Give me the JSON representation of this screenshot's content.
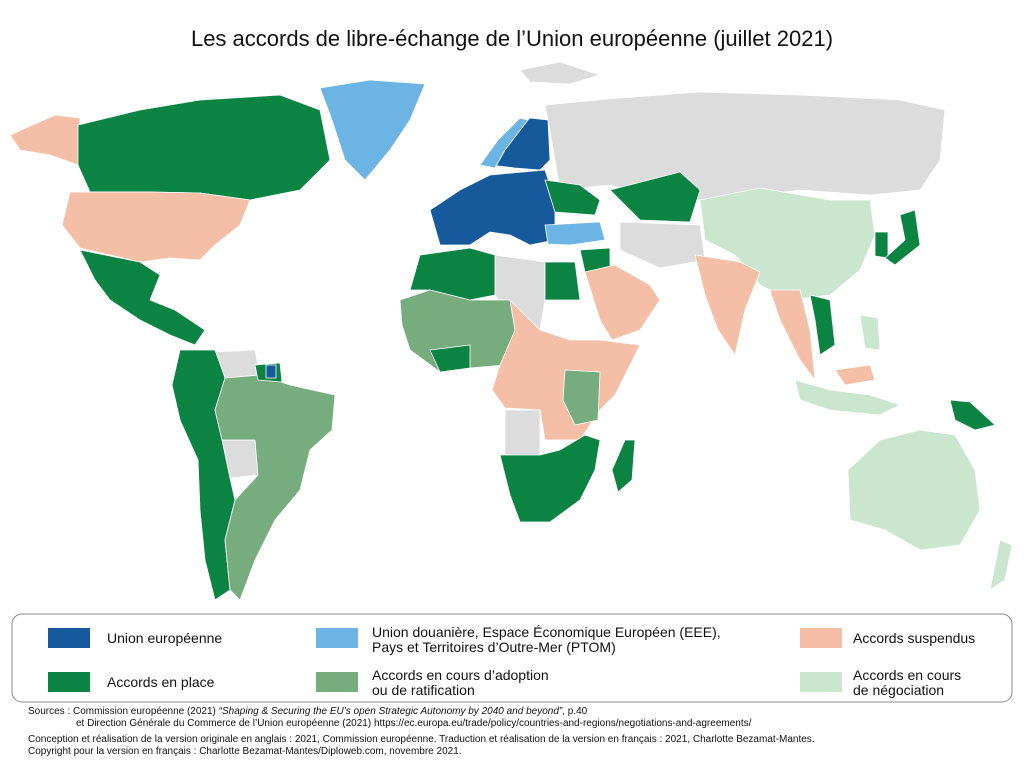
{
  "title": "Les accords de libre-échange de l’Union européenne (juillet 2021)",
  "legend": [
    {
      "lines": [
        "Union européenne"
      ],
      "color": "#175a9c"
    },
    {
      "lines": [
        "Union douanière, Espace Économique Européen (EEE),",
        "Pays et Territoires d’Outre-Mer (PTOM)"
      ],
      "color": "#6cb4e4"
    },
    {
      "lines": [
        "Accords suspendus"
      ],
      "color": "#f4bfa6"
    },
    {
      "lines": [
        "Accords en place"
      ],
      "color": "#0b8343"
    },
    {
      "lines": [
        "Accords en cours d’adoption",
        "ou de ratification"
      ],
      "color": "#77ad7e"
    },
    {
      "lines": [
        "Accords en cours",
        "de négociation"
      ],
      "color": "#cbe6cf"
    }
  ],
  "sources": {
    "line1": [
      "Sources : Commission européenne (2021) ",
      "“Shaping & Securing the EU’s open Strategic Autonomy by 2040 and beyond”",
      ", p.40"
    ],
    "line2": "et Direction Générale du Commerce de l’Union européenne (2021) https://ec.europa.eu/trade/policy/countries-and-regions/negotiations-and-agreements/",
    "line3": "Conception et réalisation de la version originale en anglais : 2021, Commission européenne. Traduction et réalisation de la version en français : 2021, Charlotte Bezamat-Mantes.",
    "line4": "Copyright pour la version en français : Charlotte Bezamat-Mantes/Diploweb.com, novembre 2021."
  }
}
